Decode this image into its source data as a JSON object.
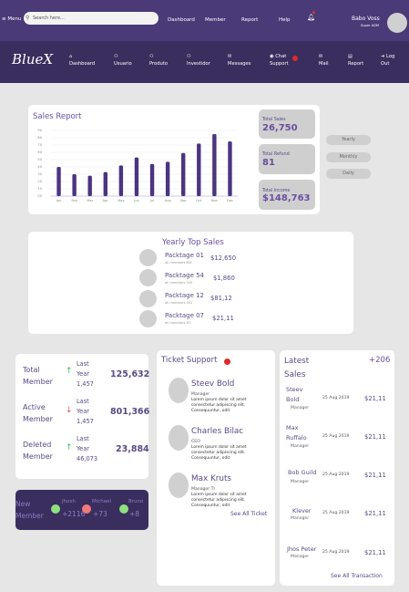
{
  "header": {
    "menu_label": "≡ Menu",
    "search_placeholder": "Search here...",
    "nav": [
      "Dashboard",
      "Member",
      "Report",
      "Help"
    ],
    "user_name": "Babo Voss",
    "user_role": "Super ADM"
  },
  "navbar": {
    "logo": "BlueX",
    "items": [
      {
        "label": "Dashboard",
        "icon": "⌂"
      },
      {
        "label": "Usuario",
        "icon": "⚇"
      },
      {
        "label": "Produto",
        "icon": "⚇"
      },
      {
        "label": "Investidor",
        "icon": "⚇"
      },
      {
        "label": "Messages",
        "icon": "✉"
      },
      {
        "label": "Chat Support",
        "icon": "◉"
      },
      {
        "label": "Mail",
        "icon": "✉"
      },
      {
        "label": "Report",
        "icon": "▤"
      },
      {
        "label": "Log Out",
        "icon": "⇥"
      }
    ]
  },
  "sales_report": {
    "title": "Sales Report",
    "stats": [
      {
        "label": "Total Sales",
        "value": "26,750"
      },
      {
        "label": "Total Refund",
        "value": "81"
      },
      {
        "label": "Total Income",
        "value": "$148,763"
      }
    ],
    "periods": [
      "Yearly",
      "Monthly",
      "Daily"
    ]
  },
  "chart_data": {
    "type": "bar",
    "categories": [
      "Jan",
      "Feb",
      "Mar",
      "Apr",
      "May",
      "Jun",
      "Jul",
      "Aug",
      "Sep",
      "Oct",
      "Nov",
      "Dec"
    ],
    "values": [
      40,
      30,
      28,
      33,
      42,
      53,
      44,
      47,
      59,
      72,
      85,
      75
    ],
    "y_ticks": [
      "90",
      "80",
      "70",
      "60",
      "50",
      "40",
      "30",
      "20",
      "10",
      "00"
    ],
    "ylim": [
      0,
      90
    ],
    "bar_color": "#4b3480",
    "grid": true
  },
  "top_sales": {
    "title": "Yearly Top Sales",
    "items": [
      {
        "name": "Packtage 01",
        "sub": "all members 60F",
        "price": "$12,650"
      },
      {
        "name": "Packtage 54",
        "sub": "all members 545",
        "price": "$1,860"
      },
      {
        "name": "Packtage 12",
        "sub": "all members 402",
        "price": "$81,12"
      },
      {
        "name": "Packtage 07",
        "sub": "all members 85",
        "price": "$21,11"
      }
    ]
  },
  "members": {
    "rows": [
      {
        "label_1": "Total",
        "label_2": "Member",
        "arrow": "↑",
        "arrow_color": "#3cba4c",
        "p1": "Last",
        "p2": "Year",
        "p3": "1,457",
        "total": "125,632"
      },
      {
        "label_1": "Active",
        "label_2": "Member",
        "arrow": "↓",
        "arrow_color": "#e05050",
        "p1": "Last",
        "p2": "Year",
        "p3": "1,457",
        "total": "801,366"
      },
      {
        "label_1": "Deleted",
        "label_2": "Member",
        "arrow": "↑",
        "arrow_color": "#3cba4c",
        "p1": "Last",
        "p2": "Year",
        "p3": "46,073",
        "total": "23,884"
      }
    ]
  },
  "new_member": {
    "label_1": "New",
    "label_2": "Member",
    "items": [
      {
        "name": "Jhosh",
        "value": "+2116",
        "color": "#8fe07f"
      },
      {
        "name": "Michael",
        "value": "+73",
        "color": "#f07a7a"
      },
      {
        "name": "Bruno",
        "value": "+8",
        "color": "#8fe07f"
      }
    ]
  },
  "ticket_support": {
    "title": "Ticket Support",
    "items": [
      {
        "name": "Steev Bold",
        "role": "Manager",
        "text_1": "Lorem ipsum dolor sit amet",
        "text_2": "consectetur adipiscing elit.",
        "text_3": "Consequuntur, odit"
      },
      {
        "name": "Charles Bilac",
        "role": "CEO",
        "text_1": "Lorem ipsum dolor sit amet",
        "text_2": "consectetur adipiscing elit.",
        "text_3": "Consequuntur, odit"
      },
      {
        "name": "Max Kruts",
        "role": "Manager TI",
        "text_1": "Lorem ipsum dolor sit amet",
        "text_2": "consectetur adipiscing elit.",
        "text_3": "Consequuntur, odit"
      }
    ],
    "see_all": "See All Ticket"
  },
  "latest_sales": {
    "title_1": "Latest",
    "title_2": "Sales",
    "count": "+206",
    "items": [
      {
        "name_1": "Steev",
        "name_2": "Bold",
        "role": "Manager",
        "date": "25 Aug 2019",
        "amount": "$21,11"
      },
      {
        "name_1": "Max",
        "name_2": "Ruffalo",
        "role": "Manager",
        "date": "25 Aug 2019",
        "amount": "$21,11"
      },
      {
        "name_1": "Bob Guild",
        "name_2": "",
        "role": "Manager",
        "date": "25 Aug 2019",
        "amount": "$21,11"
      },
      {
        "name_1": "Klever",
        "name_2": "",
        "role": "Manager",
        "date": "25 Aug 2019",
        "amount": "$21,11"
      },
      {
        "name_1": "Jhos Peter",
        "name_2": "",
        "role": "Manager",
        "date": "25 Aug 2019",
        "amount": "$21,11"
      }
    ],
    "see_all": "See All Transaction"
  }
}
